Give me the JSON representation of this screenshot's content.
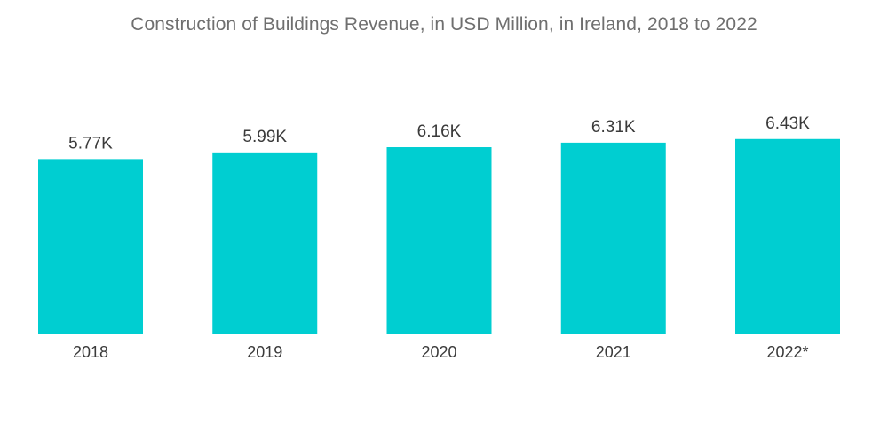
{
  "chart_data": {
    "type": "bar",
    "title": "Construction of Buildings Revenue, in USD Million, in Ireland, 2018 to 2022",
    "categories": [
      "2018",
      "2019",
      "2020",
      "2021",
      "2022*"
    ],
    "values": [
      5.77,
      5.99,
      6.16,
      6.31,
      6.43
    ],
    "data_labels": [
      "5.77K",
      "5.99K",
      "6.16K",
      "6.31K",
      "6.43K"
    ],
    "xlabel": "",
    "ylabel": "",
    "grid": false,
    "legend": "none",
    "bar_color": "#00CED1"
  }
}
